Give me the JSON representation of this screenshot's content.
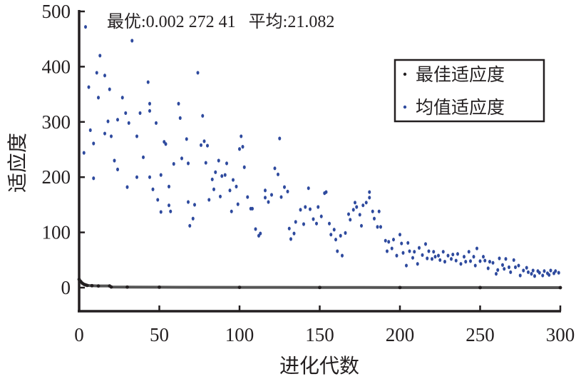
{
  "chart_data": {
    "type": "scatter",
    "title": "",
    "annotation": "最优:0.002 272 41   平均:21.082",
    "xlabel": "进化代数",
    "ylabel": "适应度",
    "xlim": [
      0,
      300
    ],
    "ylim": [
      -43,
      500
    ],
    "xticks": [
      "0",
      "50",
      "100",
      "150",
      "200",
      "250",
      "300"
    ],
    "yticks": [
      "0",
      "100",
      "200",
      "300",
      "400",
      "500"
    ],
    "grid": false,
    "legend_position": "top-right",
    "series": [
      {
        "name": "最佳适应度",
        "color": "#231f20",
        "style": "dense-dots",
        "points": [
          [
            0,
            15
          ],
          [
            1,
            11
          ],
          [
            2,
            8
          ],
          [
            3,
            6
          ],
          [
            4,
            5
          ],
          [
            5,
            4
          ],
          [
            8,
            3.5
          ],
          [
            12,
            3
          ],
          [
            19,
            3
          ],
          [
            20,
            1.2
          ],
          [
            30,
            1
          ],
          [
            50,
            0.8
          ],
          [
            100,
            0.5
          ],
          [
            150,
            0.3
          ],
          [
            200,
            0.2
          ],
          [
            250,
            0.1
          ],
          [
            300,
            0.002
          ]
        ]
      },
      {
        "name": "均值适应度",
        "color": "#2e4a9e",
        "style": "dots",
        "points": [
          [
            3,
            244
          ],
          [
            4,
            472
          ],
          [
            6,
            363
          ],
          [
            7,
            285
          ],
          [
            9,
            261
          ],
          [
            9,
            198
          ],
          [
            11,
            389
          ],
          [
            12,
            344
          ],
          [
            13,
            420
          ],
          [
            16,
            279
          ],
          [
            16,
            384
          ],
          [
            19,
            359
          ],
          [
            18,
            301
          ],
          [
            20,
            274
          ],
          [
            22,
            230
          ],
          [
            24,
            304
          ],
          [
            24,
            214
          ],
          [
            27,
            344
          ],
          [
            29,
            316
          ],
          [
            30,
            182
          ],
          [
            31,
            298
          ],
          [
            33,
            447
          ],
          [
            36,
            200
          ],
          [
            36,
            274
          ],
          [
            38,
            316
          ],
          [
            40,
            236
          ],
          [
            43,
            372
          ],
          [
            44,
            333
          ],
          [
            44,
            320
          ],
          [
            44,
            200
          ],
          [
            46,
            178
          ],
          [
            48,
            298
          ],
          [
            49,
            159
          ],
          [
            51,
            137
          ],
          [
            51,
            204
          ],
          [
            53,
            264
          ],
          [
            54,
            260
          ],
          [
            56,
            149
          ],
          [
            56,
            183
          ],
          [
            57,
            138
          ],
          [
            59,
            224
          ],
          [
            62,
            333
          ],
          [
            63,
            307
          ],
          [
            64,
            234
          ],
          [
            67,
            269
          ],
          [
            68,
            225
          ],
          [
            68,
            155
          ],
          [
            69,
            112
          ],
          [
            71,
            125
          ],
          [
            72,
            150
          ],
          [
            74,
            389
          ],
          [
            76,
            258
          ],
          [
            77,
            311
          ],
          [
            78,
            265
          ],
          [
            79,
            226
          ],
          [
            80,
            257
          ],
          [
            81,
            159
          ],
          [
            83,
            196
          ],
          [
            84,
            178
          ],
          [
            85,
            209
          ],
          [
            87,
            230
          ],
          [
            88,
            165
          ],
          [
            89,
            202
          ],
          [
            91,
            204
          ],
          [
            92,
            225
          ],
          [
            94,
            176
          ],
          [
            95,
            138
          ],
          [
            96,
            195
          ],
          [
            98,
            183
          ],
          [
            99,
            151
          ],
          [
            100,
            251
          ],
          [
            101,
            274
          ],
          [
            102,
            255
          ],
          [
            103,
            218
          ],
          [
            105,
            164
          ],
          [
            107,
            143
          ],
          [
            108,
            143
          ],
          [
            110,
            106
          ],
          [
            112,
            94
          ],
          [
            113,
            98
          ],
          [
            116,
            176
          ],
          [
            116,
            163
          ],
          [
            118,
            155
          ],
          [
            120,
            168
          ],
          [
            122,
            216
          ],
          [
            124,
            205
          ],
          [
            125,
            270
          ],
          [
            126,
            164
          ],
          [
            128,
            182
          ],
          [
            130,
            174
          ],
          [
            131,
            107
          ],
          [
            132,
            88
          ],
          [
            134,
            98
          ],
          [
            135,
            119
          ],
          [
            138,
            141
          ],
          [
            140,
            115
          ],
          [
            141,
            146
          ],
          [
            143,
            180
          ],
          [
            144,
            142
          ],
          [
            146,
            124
          ],
          [
            148,
            116
          ],
          [
            149,
            146
          ],
          [
            151,
            129
          ],
          [
            153,
            171
          ],
          [
            154,
            173
          ],
          [
            156,
            116
          ],
          [
            157,
            96
          ],
          [
            159,
            105
          ],
          [
            160,
            87
          ],
          [
            161,
            66
          ],
          [
            163,
            94
          ],
          [
            164,
            58
          ],
          [
            166,
            99
          ],
          [
            168,
            133
          ],
          [
            169,
            123
          ],
          [
            171,
            141
          ],
          [
            172,
            154
          ],
          [
            173,
            146
          ],
          [
            175,
            132
          ],
          [
            176,
            112
          ],
          [
            177,
            149
          ],
          [
            179,
            154
          ],
          [
            181,
            173
          ],
          [
            181,
            163
          ],
          [
            183,
            138
          ],
          [
            184,
            125
          ],
          [
            186,
            110
          ],
          [
            187,
            138
          ],
          [
            188,
            110
          ],
          [
            191,
            85
          ],
          [
            192,
            66
          ],
          [
            193,
            83
          ],
          [
            195,
            71
          ],
          [
            196,
            87
          ],
          [
            198,
            58
          ],
          [
            200,
            96
          ],
          [
            201,
            80
          ],
          [
            202,
            63
          ],
          [
            204,
            40
          ],
          [
            205,
            81
          ],
          [
            206,
            66
          ],
          [
            208,
            54
          ],
          [
            209,
            65
          ],
          [
            211,
            43
          ],
          [
            212,
            72
          ],
          [
            214,
            59
          ],
          [
            216,
            79
          ],
          [
            217,
            53
          ],
          [
            218,
            66
          ],
          [
            220,
            52
          ],
          [
            221,
            65
          ],
          [
            222,
            56
          ],
          [
            224,
            58
          ],
          [
            225,
            50
          ],
          [
            227,
            65
          ],
          [
            228,
            47
          ],
          [
            230,
            58
          ],
          [
            232,
            52
          ],
          [
            233,
            60
          ],
          [
            235,
            49
          ],
          [
            236,
            61
          ],
          [
            238,
            43
          ],
          [
            240,
            56
          ],
          [
            241,
            47
          ],
          [
            243,
            65
          ],
          [
            244,
            48
          ],
          [
            246,
            56
          ],
          [
            247,
            40
          ],
          [
            248,
            71
          ],
          [
            250,
            48
          ],
          [
            252,
            56
          ],
          [
            253,
            49
          ],
          [
            255,
            35
          ],
          [
            256,
            47
          ],
          [
            258,
            45
          ],
          [
            260,
            25
          ],
          [
            261,
            32
          ],
          [
            262,
            53
          ],
          [
            264,
            41
          ],
          [
            265,
            34
          ],
          [
            266,
            52
          ],
          [
            268,
            37
          ],
          [
            269,
            28
          ],
          [
            271,
            50
          ],
          [
            272,
            37
          ],
          [
            274,
            40
          ],
          [
            275,
            22
          ],
          [
            277,
            31
          ],
          [
            279,
            36
          ],
          [
            280,
            28
          ],
          [
            282,
            25
          ],
          [
            283,
            31
          ],
          [
            284,
            21
          ],
          [
            286,
            30
          ],
          [
            287,
            27
          ],
          [
            289,
            22
          ],
          [
            290,
            30
          ],
          [
            292,
            26
          ],
          [
            293,
            23
          ],
          [
            294,
            31
          ],
          [
            296,
            26
          ],
          [
            297,
            30
          ],
          [
            299,
            27
          ]
        ]
      }
    ]
  }
}
